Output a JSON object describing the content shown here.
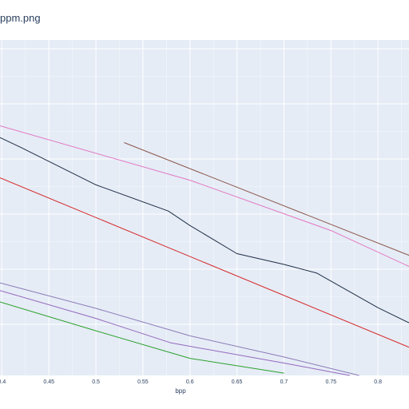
{
  "title": "ppm.png",
  "chart_data": {
    "type": "line",
    "title": "ppm.png",
    "xlabel": "bpp",
    "ylabel": "",
    "xlim": [
      0.398,
      0.833
    ],
    "ylim": [
      0.0,
      1.0
    ],
    "x_ticks": [
      {
        "value": 0.4,
        "label": "0.4"
      },
      {
        "value": 0.45,
        "label": "0.45"
      },
      {
        "value": 0.5,
        "label": "0.5"
      },
      {
        "value": 0.55,
        "label": "0.55"
      },
      {
        "value": 0.6,
        "label": "0.6"
      },
      {
        "value": 0.65,
        "label": "0.65"
      },
      {
        "value": 0.7,
        "label": "0.7"
      },
      {
        "value": 0.75,
        "label": "0.75"
      },
      {
        "value": 0.8,
        "label": "0.8"
      }
    ],
    "grid": true,
    "legend": false,
    "series": [
      {
        "color": "#8c564b",
        "points": [
          [
            0.53,
            0.694
          ],
          [
            0.833,
            0.358
          ]
        ]
      },
      {
        "color": "#e377c2",
        "points": [
          [
            0.398,
            0.744
          ],
          [
            0.6,
            0.582
          ],
          [
            0.63,
            0.552
          ],
          [
            0.75,
            0.432
          ],
          [
            0.833,
            0.325
          ]
        ]
      },
      {
        "color": "#1f2d45",
        "points": [
          [
            0.398,
            0.709
          ],
          [
            0.42,
            0.68
          ],
          [
            0.5,
            0.568
          ],
          [
            0.577,
            0.49
          ],
          [
            0.6,
            0.447
          ],
          [
            0.65,
            0.363
          ],
          [
            0.7,
            0.331
          ],
          [
            0.735,
            0.305
          ],
          [
            0.8,
            0.202
          ],
          [
            0.833,
            0.157
          ]
        ]
      },
      {
        "color": "#d62728",
        "points": [
          [
            0.398,
            0.589
          ],
          [
            0.833,
            0.084
          ]
        ]
      },
      {
        "color": "#8c7ab8",
        "points": [
          [
            0.398,
            0.276
          ],
          [
            0.5,
            0.2
          ],
          [
            0.6,
            0.118
          ],
          [
            0.7,
            0.055
          ],
          [
            0.78,
            0.0
          ]
        ]
      },
      {
        "color": "#9467bd",
        "points": [
          [
            0.398,
            0.253
          ],
          [
            0.5,
            0.17
          ],
          [
            0.58,
            0.097
          ],
          [
            0.7,
            0.037
          ],
          [
            0.77,
            0.0
          ]
        ]
      },
      {
        "color": "#2ca02c",
        "points": [
          [
            0.398,
            0.219
          ],
          [
            0.5,
            0.133
          ],
          [
            0.6,
            0.051
          ],
          [
            0.7,
            0.007
          ]
        ]
      }
    ]
  }
}
